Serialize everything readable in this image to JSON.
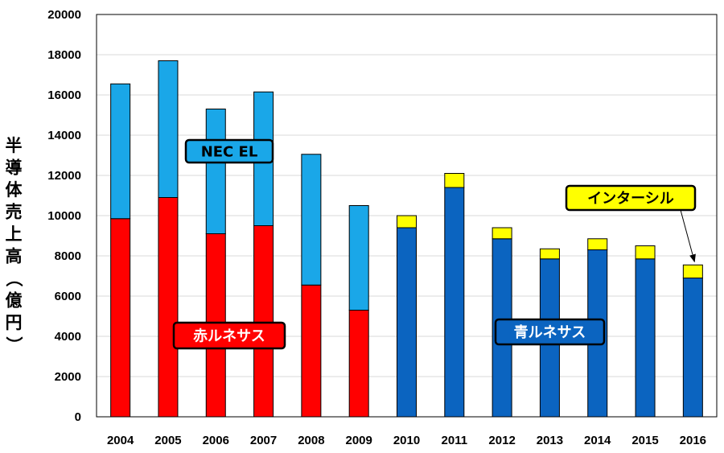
{
  "chart_data": {
    "type": "bar",
    "stacked": true,
    "title": "",
    "xlabel": "",
    "ylabel": "半導体売上高（億円）",
    "ylim": [
      0,
      20000
    ],
    "ytick_step": 2000,
    "grid": true,
    "categories": [
      "2004",
      "2005",
      "2006",
      "2007",
      "2008",
      "2009",
      "2010",
      "2011",
      "2012",
      "2013",
      "2014",
      "2015",
      "2016"
    ],
    "series": [
      {
        "name": "赤ルネサス",
        "color": "#ff0000",
        "values": [
          9850,
          10900,
          9100,
          9500,
          6550,
          5300,
          0,
          0,
          0,
          0,
          0,
          0,
          0
        ]
      },
      {
        "name": "NEC EL",
        "color": "#1aa7e8",
        "values": [
          6700,
          6800,
          6200,
          6650,
          6500,
          5200,
          0,
          0,
          0,
          0,
          0,
          0,
          0
        ]
      },
      {
        "name": "青ルネサス",
        "color": "#0b64c0",
        "values": [
          0,
          0,
          0,
          0,
          0,
          0,
          9400,
          11400,
          8850,
          7850,
          8300,
          7850,
          6900
        ]
      },
      {
        "name": "インターシル",
        "color": "#ffff00",
        "values": [
          0,
          0,
          0,
          0,
          0,
          0,
          600,
          700,
          550,
          500,
          550,
          650,
          650
        ]
      }
    ],
    "annotations": [
      {
        "text": "NEC EL",
        "series": "NEC EL",
        "fill": "#1aa7e8",
        "textColor": "#000000"
      },
      {
        "text": "インターシル",
        "series": "インターシル",
        "fill": "#ffff00",
        "textColor": "#000000",
        "arrow_to": "2016"
      },
      {
        "text": "赤ルネサス",
        "series": "赤ルネサス",
        "fill": "#ff0000",
        "textColor": "#ffffff"
      },
      {
        "text": "青ルネサス",
        "series": "青ルネサス",
        "fill": "#0b64c0",
        "textColor": "#ffffff"
      }
    ]
  }
}
